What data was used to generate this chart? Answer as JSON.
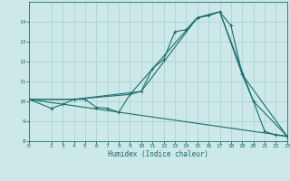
{
  "xlabel": "Humidex (Indice chaleur)",
  "bg_color": "#cce8e8",
  "grid_color": "#aacfcf",
  "line_color": "#1a6e6e",
  "xlim": [
    0,
    23
  ],
  "ylim": [
    8,
    15
  ],
  "yticks": [
    8,
    9,
    10,
    11,
    12,
    13,
    14
  ],
  "xticks": [
    0,
    2,
    3,
    4,
    5,
    6,
    7,
    8,
    9,
    10,
    11,
    12,
    13,
    14,
    15,
    16,
    17,
    18,
    19,
    20,
    21,
    22,
    23
  ],
  "line1_x": [
    0,
    2,
    3,
    4,
    5,
    6,
    7,
    8,
    9,
    10,
    11,
    12,
    13,
    14,
    15,
    16,
    17,
    18,
    19,
    20,
    21,
    22,
    23
  ],
  "line1_y": [
    10.1,
    9.65,
    9.85,
    10.1,
    10.1,
    9.7,
    9.65,
    9.45,
    10.35,
    10.5,
    11.65,
    12.1,
    13.5,
    13.6,
    14.2,
    14.3,
    14.5,
    13.8,
    11.35,
    10.0,
    8.5,
    8.3,
    8.25
  ],
  "line2_x": [
    0,
    4,
    9,
    15,
    17,
    20,
    23
  ],
  "line2_y": [
    10.1,
    10.1,
    10.35,
    14.2,
    14.5,
    10.0,
    8.25
  ],
  "line3_x": [
    0,
    4,
    10,
    15,
    17,
    19,
    23
  ],
  "line3_y": [
    10.1,
    10.1,
    10.5,
    14.2,
    14.5,
    11.35,
    8.25
  ],
  "line4_x": [
    0,
    23
  ],
  "line4_y": [
    10.1,
    8.25
  ]
}
